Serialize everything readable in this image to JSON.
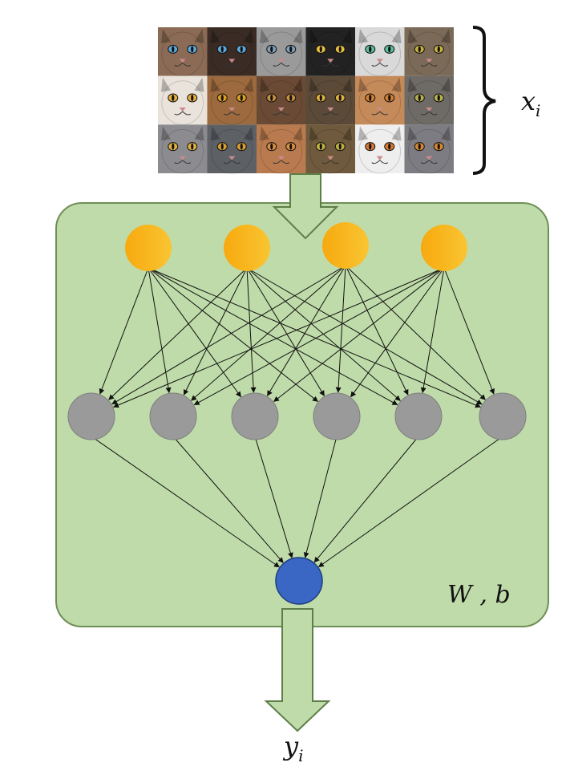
{
  "labels": {
    "input": "x",
    "input_sub": "i",
    "output": "y",
    "output_sub": "i",
    "params": "W , b"
  },
  "network": {
    "input_nodes": 4,
    "hidden_nodes": 6,
    "output_nodes": 1,
    "input_color": "#F6B80F",
    "hidden_color": "#9A9A9A",
    "output_color": "#3A66C4"
  },
  "colors": {
    "box_fill": "#BFDBA9",
    "box_stroke": "#6E8E57",
    "arrow_fill": "#BFDBA9",
    "arrow_stroke": "#5E7E49"
  },
  "images": {
    "grid_rows": 3,
    "grid_cols": 6,
    "content": "cat-face-photo-grid"
  }
}
